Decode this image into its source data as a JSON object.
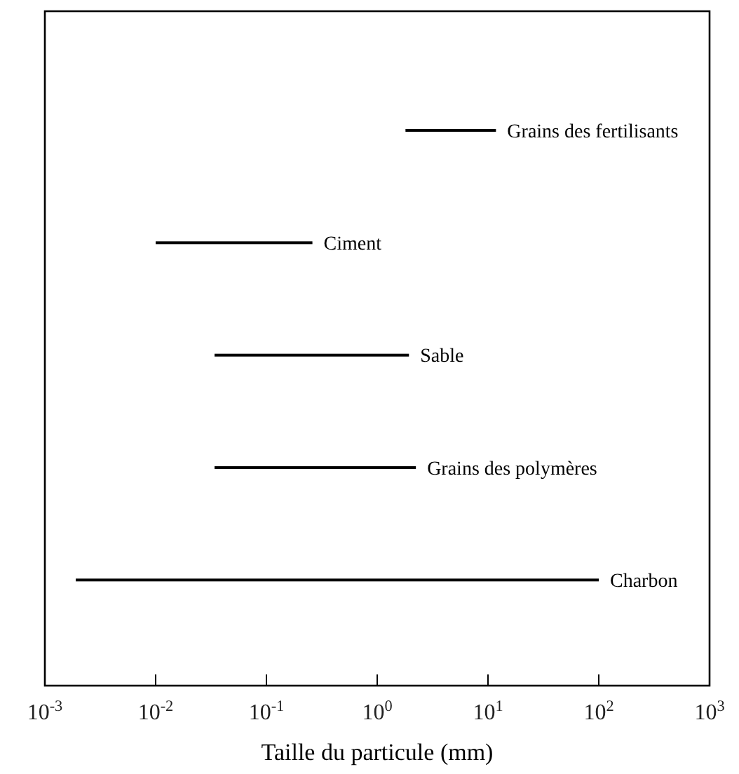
{
  "chart_data": {
    "type": "bar",
    "orientation": "horizontal",
    "log": "x",
    "xlabel": "Taille du particule (mm)",
    "categories": [
      "Grains des fertilisants",
      "Ciment",
      "Sable",
      "Grains des polymères",
      "Charbon"
    ],
    "base": [
      1.8,
      0.01,
      0.034,
      0.034,
      0.0019
    ],
    "values": [
      10,
      0.25,
      1.9,
      2.2,
      100
    ],
    "color": "#000000",
    "xlim": [
      0.001,
      1000
    ],
    "xticks": [
      {
        "value": 0.001,
        "label": "10$^{-3}$"
      },
      {
        "value": 0.01,
        "label": "10$^{-2}$"
      },
      {
        "value": 0.1,
        "label": "10$^{-1}$"
      },
      {
        "value": 1,
        "label": "10$^{0}$"
      },
      {
        "value": 10,
        "label": "10$^{1}$"
      },
      {
        "value": 100,
        "label": "10$^{2}$"
      },
      {
        "value": 1000,
        "label": "10$^{3}$"
      }
    ],
    "tick_labels": "x",
    "grid": false
  }
}
